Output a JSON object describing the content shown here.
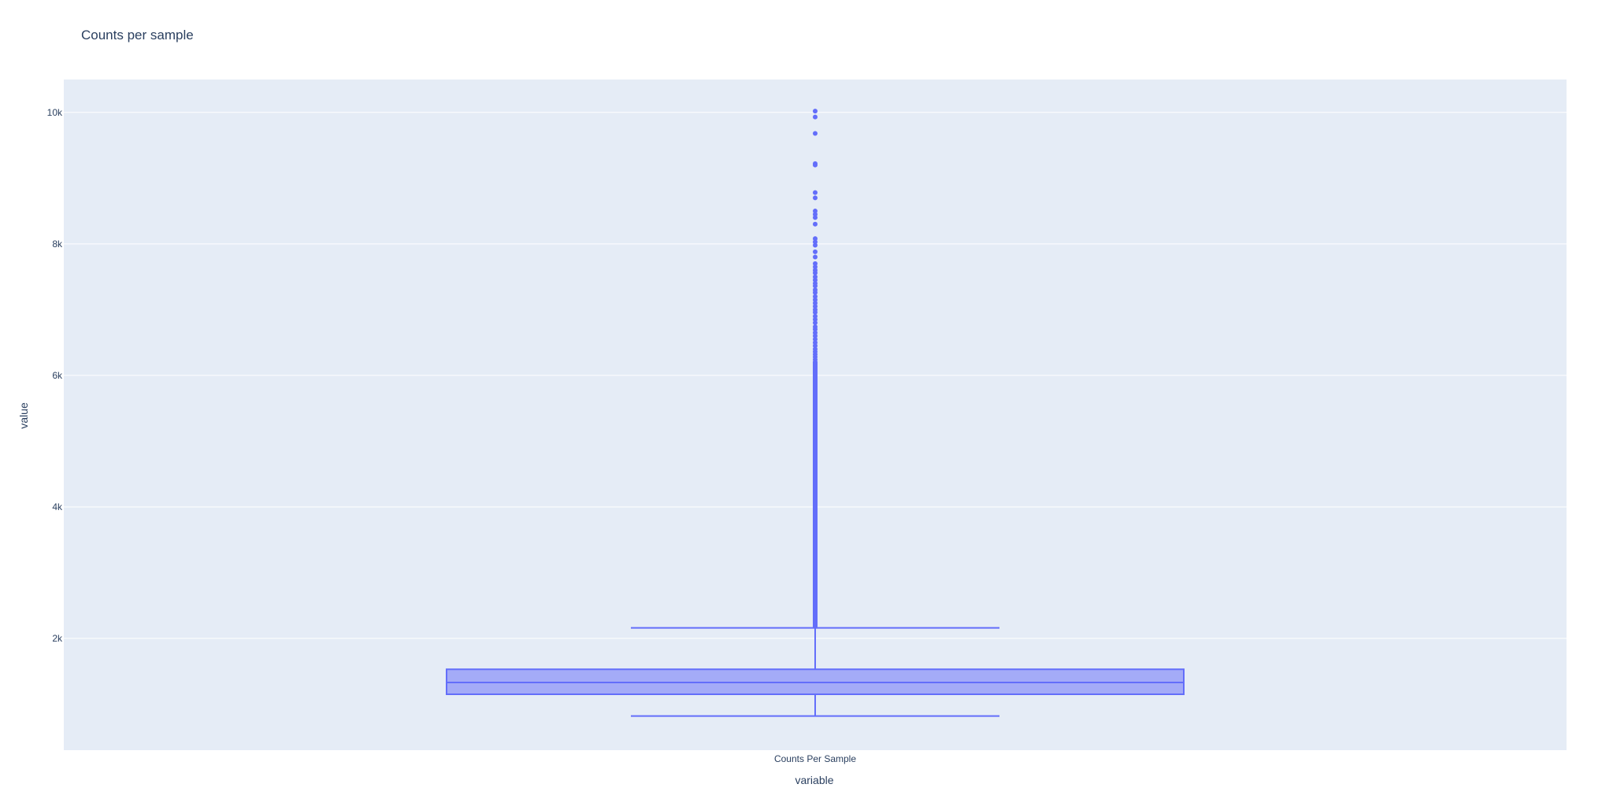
{
  "chart_data": {
    "type": "box",
    "title": "Counts per sample",
    "xlabel": "variable",
    "ylabel": "value",
    "categories": [
      "Counts Per Sample"
    ],
    "ylim": [
      300,
      10500
    ],
    "yticks": [
      2000,
      4000,
      6000,
      8000,
      10000
    ],
    "ytick_labels": [
      "2k",
      "4k",
      "6k",
      "8k",
      "10k"
    ],
    "grid": true,
    "box": {
      "q1": 1150,
      "median": 1330,
      "q3": 1530,
      "lower_fence": 820,
      "upper_fence": 2160
    },
    "outliers_dense_range": [
      2180,
      6200
    ],
    "outliers": [
      6200,
      6240,
      6280,
      6320,
      6360,
      6400,
      6450,
      6500,
      6550,
      6600,
      6650,
      6700,
      6740,
      6800,
      6850,
      6900,
      6960,
      7000,
      7050,
      7100,
      7150,
      7200,
      7260,
      7300,
      7360,
      7400,
      7450,
      7500,
      7560,
      7600,
      7650,
      7700,
      7800,
      7880,
      7980,
      8030,
      8080,
      8300,
      8400,
      8450,
      8500,
      8700,
      8780,
      9200,
      9220,
      9680,
      9930,
      10020
    ],
    "colors": {
      "box_fill": "#a4abf7",
      "line": "#636efa",
      "plot_bg": "#e5ecf6",
      "grid": "#ffffff"
    }
  }
}
